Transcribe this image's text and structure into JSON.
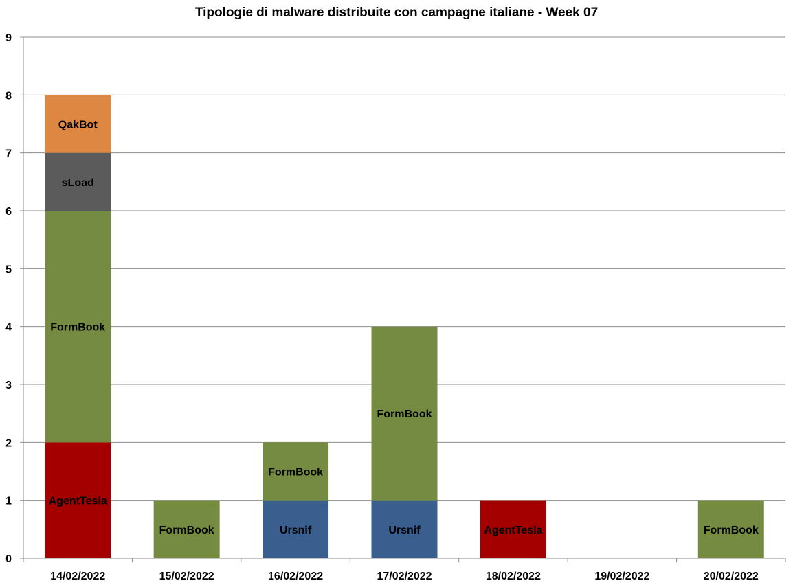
{
  "chart_data": {
    "type": "bar",
    "stacked": true,
    "title": "Tipologie  di malware distribuite con campagne italiane - Week 07",
    "xlabel": "",
    "ylabel": "",
    "ylim": [
      0,
      9
    ],
    "yticks": [
      0,
      1,
      2,
      3,
      4,
      5,
      6,
      7,
      8,
      9
    ],
    "grid": true,
    "legend": "none",
    "categories": [
      "14/02/2022",
      "15/02/2022",
      "16/02/2022",
      "17/02/2022",
      "18/02/2022",
      "19/02/2022",
      "20/02/2022"
    ],
    "series": [
      {
        "name": "AgentTesla",
        "color": "#a50000",
        "values": [
          2,
          0,
          0,
          0,
          1,
          0,
          0
        ]
      },
      {
        "name": "Ursnif",
        "color": "#3a5f8f",
        "values": [
          0,
          0,
          1,
          1,
          0,
          0,
          0
        ]
      },
      {
        "name": "FormBook",
        "color": "#758b42",
        "values": [
          4,
          1,
          1,
          3,
          0,
          0,
          1
        ]
      },
      {
        "name": "sLoad",
        "color": "#5b5b5b",
        "values": [
          1,
          0,
          0,
          0,
          0,
          0,
          0
        ]
      },
      {
        "name": "QakBot",
        "color": "#dd8743",
        "values": [
          1,
          0,
          0,
          0,
          0,
          0,
          0
        ]
      }
    ]
  }
}
